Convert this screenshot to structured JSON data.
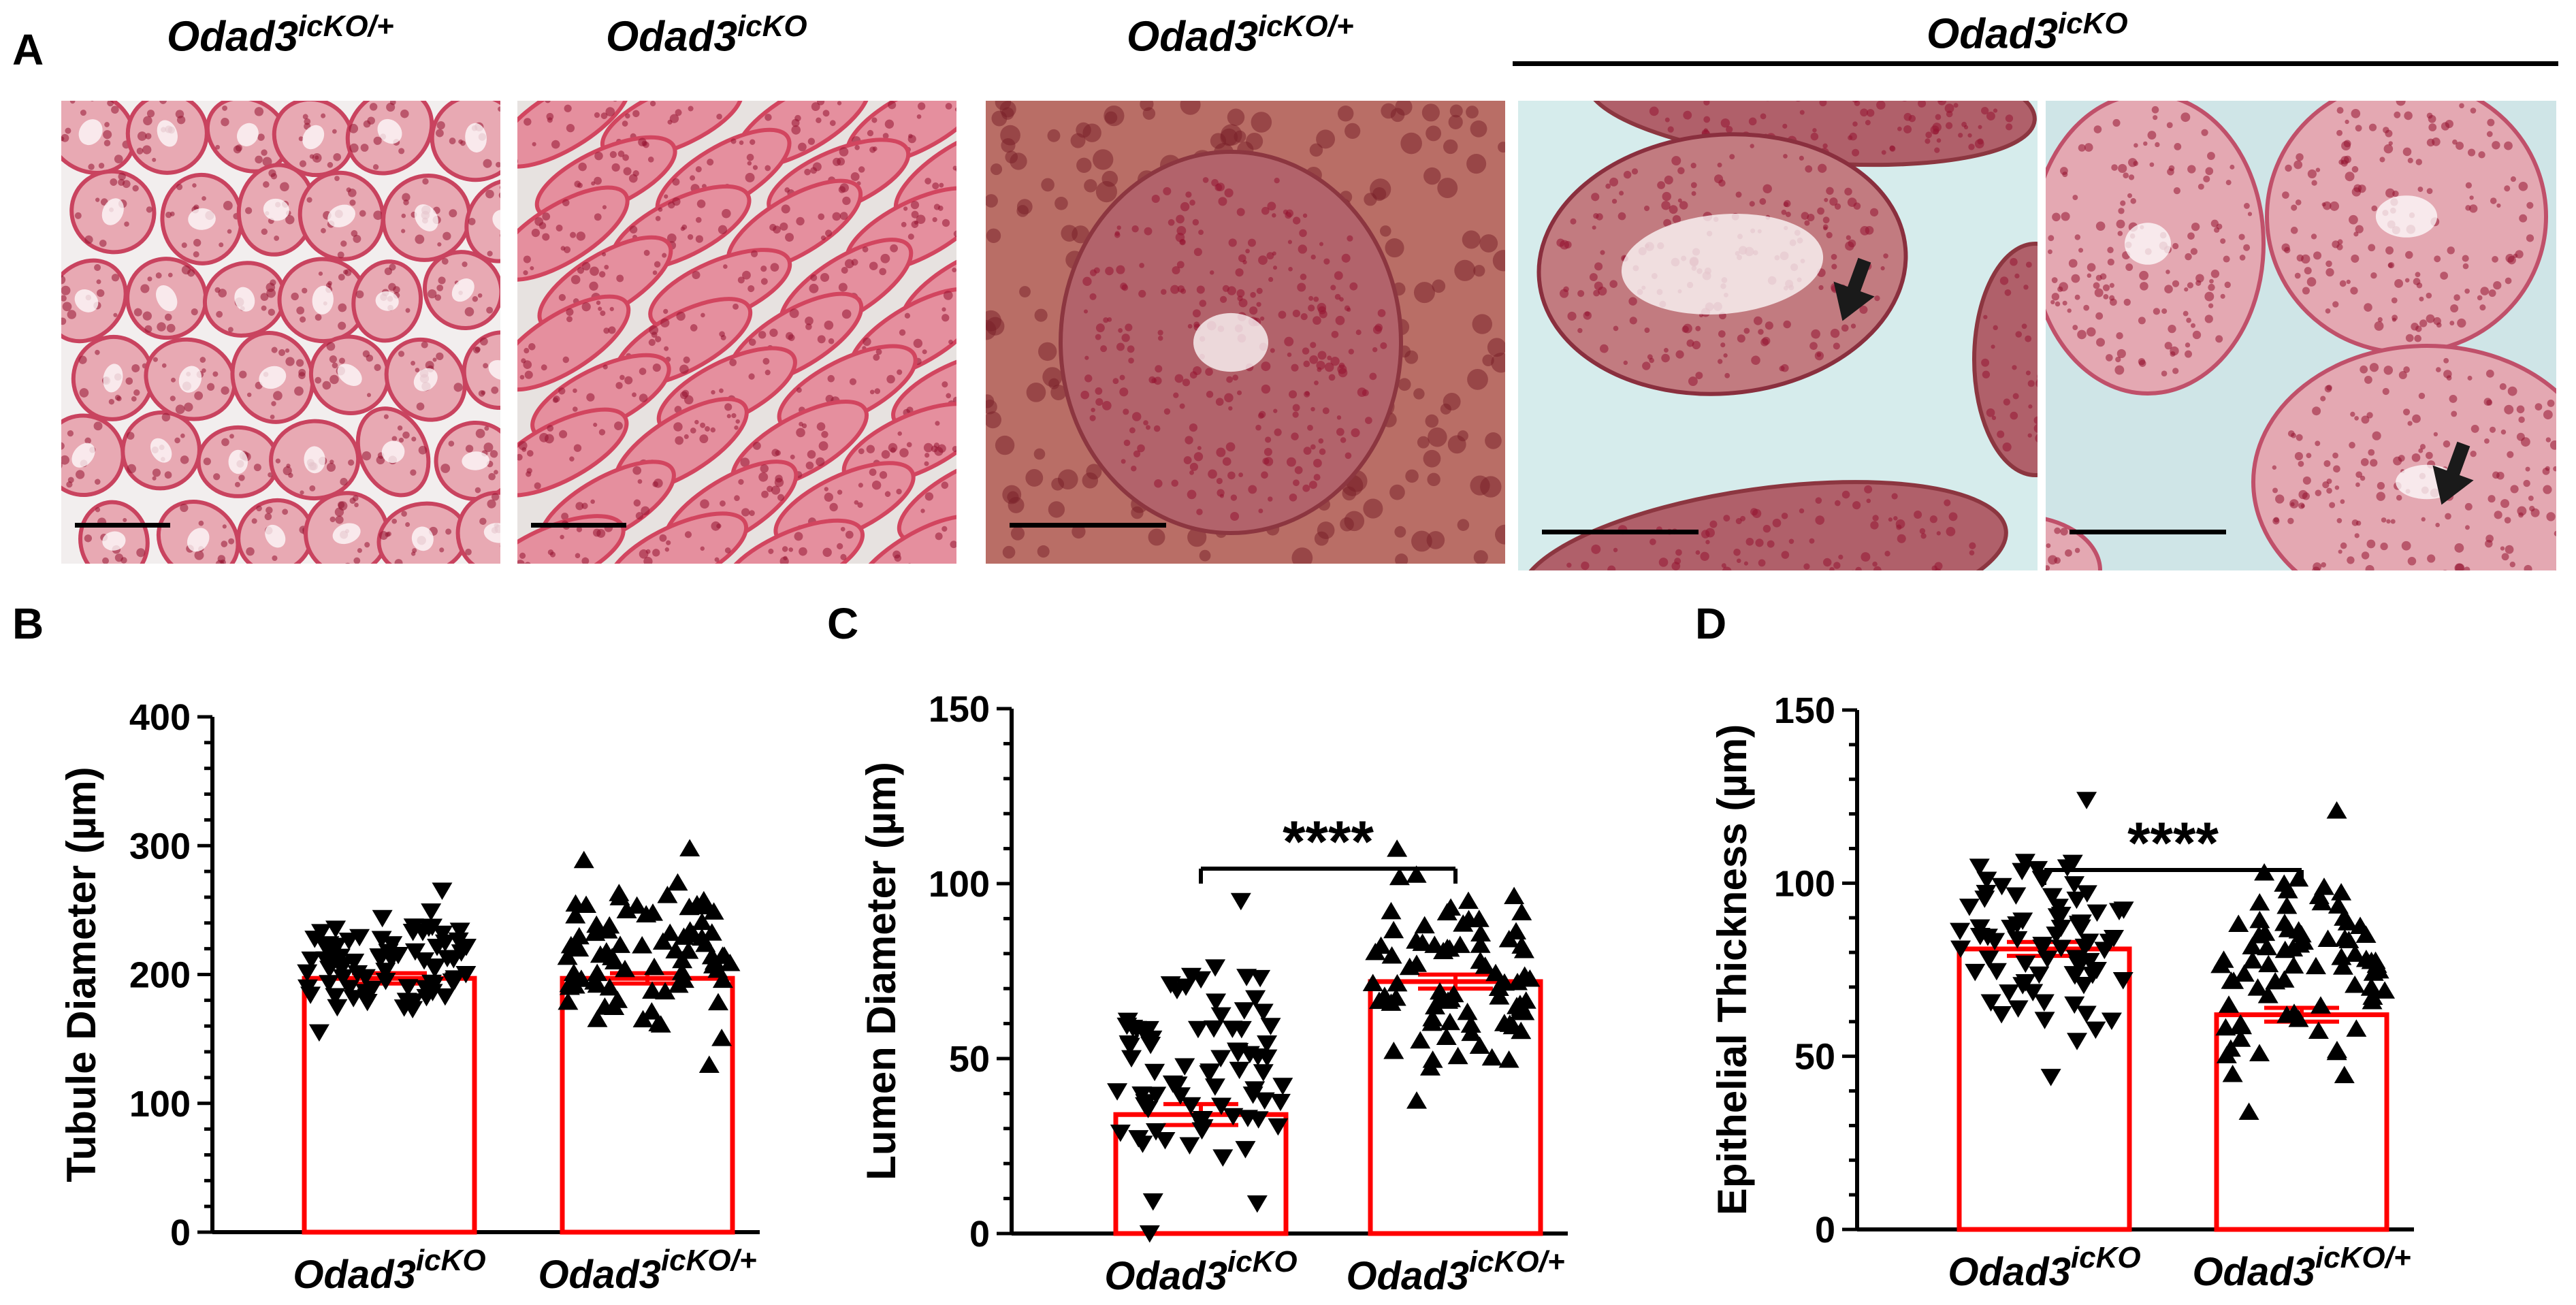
{
  "panel_a": {
    "letter": "A",
    "labels": [
      {
        "base": "Odad3",
        "sup": "icKO/+"
      },
      {
        "base": "Odad3",
        "sup": "icKO"
      },
      {
        "base": "Odad3",
        "sup": "icKO/+"
      },
      {
        "base": "Odad3",
        "sup": "icKO"
      }
    ],
    "micrographs": [
      {
        "name": "odad3-icko-het-low-mag",
        "stain": "H&E",
        "has_arrow": false
      },
      {
        "name": "odad3-icko-low-mag",
        "stain": "H&E",
        "has_arrow": false
      },
      {
        "name": "odad3-icko-het-high-mag",
        "stain": "H&E",
        "has_arrow": false
      },
      {
        "name": "odad3-icko-high-mag-1",
        "stain": "H&E",
        "has_arrow": true
      },
      {
        "name": "odad3-icko-high-mag-2",
        "stain": "H&E",
        "has_arrow": true
      }
    ]
  },
  "chart_data": [
    {
      "panel": "B",
      "type": "bar",
      "ylabel": "Tubule Diameter (µm)",
      "ylim": [
        0,
        400
      ],
      "yticks": [
        0,
        100,
        200,
        300,
        400
      ],
      "categories": [
        {
          "base": "Odad3",
          "sup": "icKO"
        },
        {
          "base": "Odad3",
          "sup": "icKO/+"
        }
      ],
      "values": [
        197,
        197
      ],
      "error": [
        4,
        4
      ],
      "significance": "",
      "points": [
        {
          "marker": "triangle-down",
          "n": 80,
          "min": 155,
          "max": 265
        },
        {
          "marker": "triangle-up",
          "n": 80,
          "min": 130,
          "max": 298
        }
      ],
      "colors": {
        "bar": "#ff0000",
        "points": "#000000"
      }
    },
    {
      "panel": "C",
      "type": "bar",
      "ylabel": "Lumen Diameter (µm)",
      "ylim": [
        0,
        150
      ],
      "yticks": [
        0,
        50,
        100,
        150
      ],
      "categories": [
        {
          "base": "Odad3",
          "sup": "icKO"
        },
        {
          "base": "Odad3",
          "sup": "icKO/+"
        }
      ],
      "values": [
        34,
        72
      ],
      "error": [
        3,
        2
      ],
      "significance": "****",
      "points": [
        {
          "marker": "triangle-down",
          "n": 80,
          "min": 0,
          "max": 95
        },
        {
          "marker": "triangle-up",
          "n": 80,
          "min": 38,
          "max": 110
        }
      ],
      "colors": {
        "bar": "#ff0000",
        "points": "#000000"
      }
    },
    {
      "panel": "D",
      "type": "bar",
      "ylabel": "Epithelial Thickness (µm)",
      "ylim": [
        0,
        150
      ],
      "yticks": [
        0,
        50,
        100,
        150
      ],
      "categories": [
        {
          "base": "Odad3",
          "sup": "icKO"
        },
        {
          "base": "Odad3",
          "sup": "icKO/+"
        }
      ],
      "values": [
        81,
        62
      ],
      "error": [
        2,
        2
      ],
      "significance": "****",
      "points": [
        {
          "marker": "triangle-down",
          "n": 80,
          "min": 44,
          "max": 124
        },
        {
          "marker": "triangle-up",
          "n": 80,
          "min": 34,
          "max": 121
        }
      ],
      "colors": {
        "bar": "#ff0000",
        "points": "#000000"
      }
    }
  ]
}
